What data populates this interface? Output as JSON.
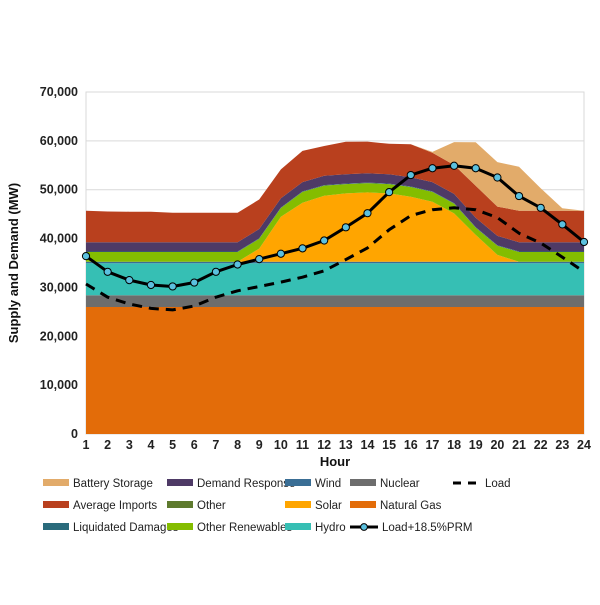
{
  "chart_data": {
    "type": "area",
    "title": "",
    "xlabel": "Hour",
    "ylabel": "Supply and Demand (MW)",
    "ylim": [
      0,
      70000
    ],
    "yticks": [
      "0",
      "10,000",
      "20,000",
      "30,000",
      "40,000",
      "50,000",
      "60,000",
      "70,000"
    ],
    "ytick_values": [
      0,
      10000,
      20000,
      30000,
      40000,
      50000,
      60000,
      70000
    ],
    "x": [
      1,
      2,
      3,
      4,
      5,
      6,
      7,
      8,
      9,
      10,
      11,
      12,
      13,
      14,
      15,
      16,
      17,
      18,
      19,
      20,
      21,
      22,
      23,
      24
    ],
    "xticks": [
      "1",
      "2",
      "3",
      "4",
      "5",
      "6",
      "7",
      "8",
      "9",
      "10",
      "11",
      "12",
      "13",
      "14",
      "15",
      "16",
      "17",
      "18",
      "19",
      "20",
      "21",
      "22",
      "23",
      "24"
    ],
    "grid": "horizontal",
    "legend": "bottom",
    "stacked": true,
    "series": [
      {
        "name": "Natural Gas",
        "color": "#E36C09",
        "values": [
          26000,
          26000,
          26000,
          26000,
          26000,
          26000,
          26000,
          26000,
          26000,
          26000,
          26000,
          26000,
          26000,
          26000,
          26000,
          26000,
          26000,
          26000,
          26000,
          26000,
          26000,
          26000,
          26000,
          26000
        ]
      },
      {
        "name": "Nuclear",
        "color": "#6D6D6D",
        "values": [
          2400,
          2400,
          2400,
          2400,
          2400,
          2400,
          2400,
          2400,
          2400,
          2400,
          2400,
          2400,
          2400,
          2400,
          2400,
          2400,
          2400,
          2400,
          2400,
          2400,
          2400,
          2400,
          2400,
          2400
        ]
      },
      {
        "name": "Hydro",
        "color": "#36BFB4",
        "values": [
          6550,
          6550,
          6550,
          6550,
          6550,
          6550,
          6550,
          6550,
          6550,
          6550,
          6550,
          6550,
          6550,
          6550,
          6550,
          6550,
          6550,
          6550,
          6550,
          6550,
          6550,
          6550,
          6550,
          6550
        ]
      },
      {
        "name": "Wind",
        "color": "#3A6E95",
        "values": [
          300,
          300,
          300,
          300,
          300,
          300,
          300,
          300,
          300,
          300,
          300,
          300,
          300,
          300,
          300,
          300,
          300,
          300,
          300,
          300,
          300,
          300,
          300,
          300
        ]
      },
      {
        "name": "Solar",
        "color": "#FFA500",
        "values": [
          0,
          0,
          0,
          0,
          0,
          0,
          0,
          0,
          2700,
          9200,
          12100,
          13500,
          14000,
          14200,
          14000,
          13300,
          12300,
          9900,
          5500,
          1400,
          0,
          0,
          0,
          0
        ]
      },
      {
        "name": "Other Renewables",
        "color": "#84BD00",
        "values": [
          2000,
          2000,
          2000,
          2000,
          2000,
          2000,
          2000,
          2000,
          2000,
          1800,
          2200,
          2100,
          1900,
          1900,
          1900,
          2000,
          2000,
          2000,
          1500,
          1900,
          2000,
          2000,
          2000,
          2000
        ]
      },
      {
        "name": "Other",
        "color": "#5E7A2E",
        "values": [
          0,
          0,
          0,
          0,
          0,
          0,
          0,
          0,
          0,
          0,
          0,
          0,
          0,
          0,
          0,
          0,
          0,
          0,
          0,
          0,
          0,
          0,
          0,
          0
        ]
      },
      {
        "name": "Liquidated Damages",
        "color": "#2A6B7C",
        "values": [
          100,
          100,
          100,
          100,
          100,
          100,
          100,
          100,
          100,
          100,
          100,
          100,
          100,
          100,
          100,
          100,
          100,
          100,
          100,
          100,
          100,
          100,
          100,
          100
        ]
      },
      {
        "name": "Demand Response",
        "color": "#4E3A66",
        "values": [
          1900,
          1900,
          1900,
          1900,
          1900,
          1900,
          1900,
          1900,
          1900,
          1900,
          1900,
          1900,
          1900,
          1900,
          1900,
          1900,
          1900,
          1900,
          1900,
          1900,
          1900,
          1900,
          1900,
          1900
        ]
      },
      {
        "name": "Average Imports",
        "color": "#B9401E",
        "values": [
          6450,
          6300,
          6250,
          6250,
          6050,
          6050,
          6050,
          6050,
          6050,
          5900,
          6400,
          6100,
          6650,
          6500,
          6250,
          6750,
          6000,
          5900,
          6550,
          6000,
          6450,
          6450,
          6450,
          6450
        ]
      },
      {
        "name": "Battery Storage",
        "color": "#E2AB6A",
        "values": [
          0,
          0,
          0,
          0,
          0,
          0,
          0,
          0,
          0,
          0,
          0,
          0,
          0,
          0,
          0,
          0,
          200,
          4700,
          8900,
          9100,
          9000,
          4600,
          500,
          0
        ]
      }
    ],
    "lines": [
      {
        "name": "Load",
        "color": "#000000",
        "style": "dashed",
        "values": [
          30700,
          28000,
          26600,
          25700,
          25400,
          26200,
          28000,
          29300,
          30200,
          31100,
          32100,
          33400,
          35700,
          38100,
          41800,
          44700,
          45900,
          46300,
          45900,
          44300,
          41100,
          39100,
          36200,
          33200
        ]
      },
      {
        "name": "Load+18.5%PRM",
        "color": "#000000",
        "marker_color": "#5BC0DE",
        "style": "solid-markers",
        "values": [
          36400,
          33200,
          31500,
          30500,
          30200,
          31000,
          33200,
          34700,
          35800,
          36900,
          38000,
          39600,
          42300,
          45200,
          49500,
          53000,
          54400,
          54900,
          54400,
          52500,
          48700,
          46300,
          42900,
          39300
        ]
      }
    ]
  }
}
